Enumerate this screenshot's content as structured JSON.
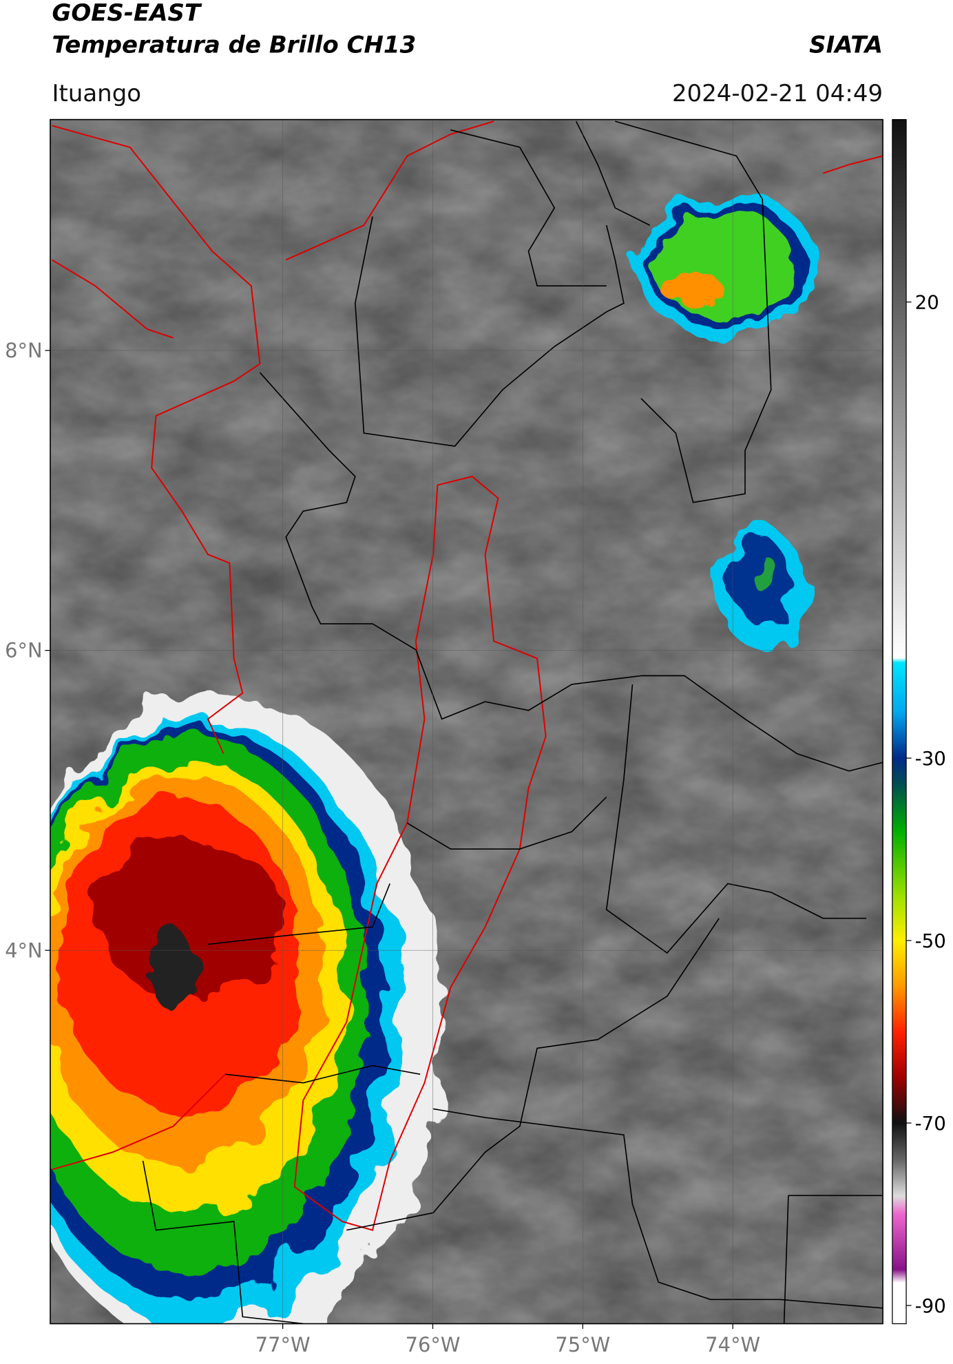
{
  "header": {
    "title": "GOES-EAST",
    "subtitle": "Temperatura de Brillo CH13",
    "source": "SIATA",
    "location": "Ituango",
    "timestamp": "2024-02-21 04:49"
  },
  "map": {
    "xlim": [
      -78.55,
      -73.0
    ],
    "ylim": [
      1.51,
      9.54
    ],
    "xticks": [
      {
        "value": -77,
        "label": "77°W"
      },
      {
        "value": -76,
        "label": "76°W"
      },
      {
        "value": -75,
        "label": "75°W"
      },
      {
        "value": -74,
        "label": "74°W"
      }
    ],
    "yticks": [
      {
        "value": 8,
        "label": "8°N"
      },
      {
        "value": 6,
        "label": "6°N"
      },
      {
        "value": 4,
        "label": "4°N"
      }
    ],
    "grid": true
  },
  "colorbar": {
    "lim": [
      -92,
      40
    ],
    "ticks": [
      20,
      -30,
      -50,
      -70,
      -90
    ]
  }
}
